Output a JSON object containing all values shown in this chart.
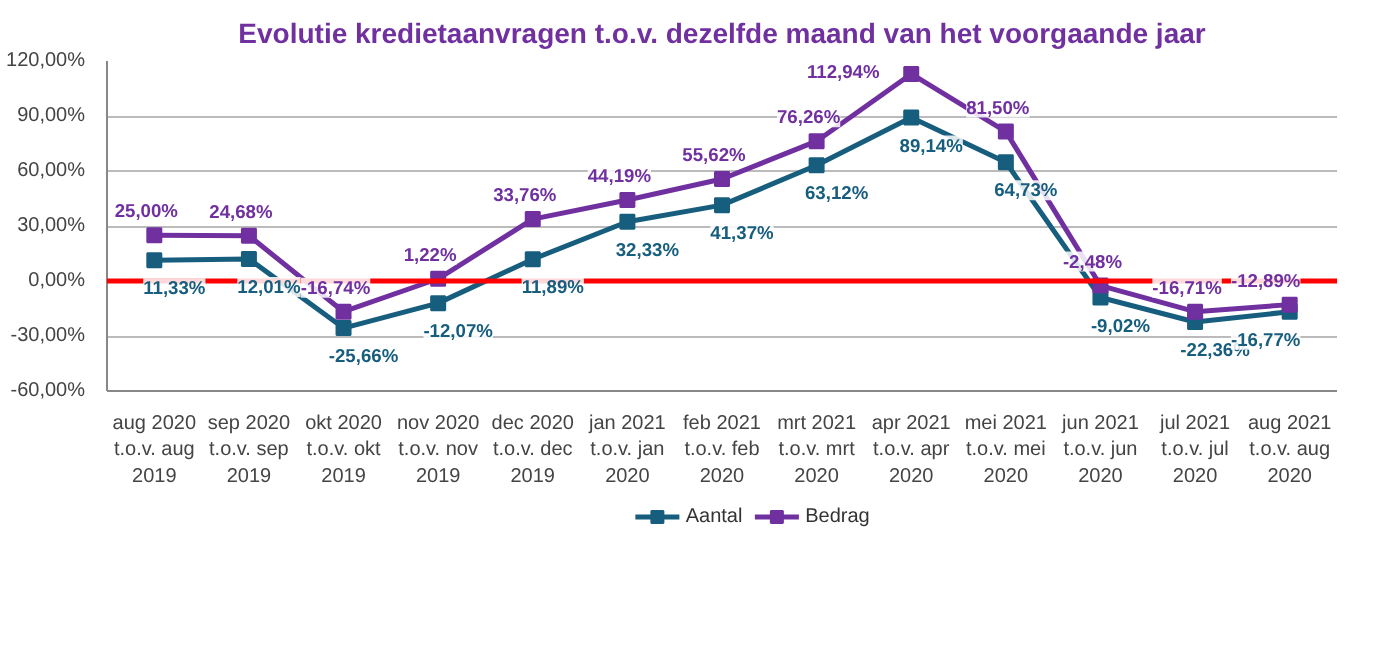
{
  "chart_data": {
    "type": "line",
    "title": "Evolutie kredietaanvragen t.o.v. dezelfde maand van het voorgaande jaar",
    "categories": [
      "aug 2020\nt.o.v. aug\n2019",
      "sep 2020\nt.o.v. sep\n2019",
      "okt 2020\nt.o.v. okt\n2019",
      "nov 2020\nt.o.v. nov\n2019",
      "dec 2020\nt.o.v. dec\n2019",
      "jan 2021\nt.o.v. jan\n2020",
      "feb 2021\nt.o.v. feb\n2020",
      "mrt 2021\nt.o.v. mrt\n2020",
      "apr 2021\nt.o.v. apr\n2020",
      "mei 2021\nt.o.v. mei\n2020",
      "jun 2021\nt.o.v. jun\n2020",
      "jul 2021\nt.o.v. jul\n2020",
      "aug 2021\nt.o.v. aug\n2020"
    ],
    "series": [
      {
        "name": "Aantal",
        "color": "#175e7e",
        "values": [
          11.33,
          12.01,
          -25.66,
          -12.07,
          11.89,
          32.33,
          41.37,
          63.12,
          89.14,
          64.73,
          -9.02,
          -22.36,
          -16.77
        ],
        "value_labels": [
          "11,33%",
          "12,01%",
          "-25,66%",
          "-12,07%",
          "11,89%",
          "32,33%",
          "41,37%",
          "63,12%",
          "89,14%",
          "64,73%",
          "-9,02%",
          "-22,36%",
          "-16,77%"
        ]
      },
      {
        "name": "Bedrag",
        "color": "#7030a0",
        "values": [
          25.0,
          24.68,
          -16.74,
          1.22,
          33.76,
          44.19,
          55.62,
          76.26,
          112.94,
          81.5,
          -2.48,
          -16.71,
          -12.89
        ],
        "value_labels": [
          "25,00%",
          "24,68%",
          "-16,74%",
          "1,22%",
          "33,76%",
          "44,19%",
          "55,62%",
          "76,26%",
          "112,94%",
          "81,50%",
          "-2,48%",
          "-16,71%",
          "-12,89%"
        ]
      }
    ],
    "ylim": [
      -60,
      120
    ],
    "yticks": [
      {
        "value": -60,
        "label": "-60,00%"
      },
      {
        "value": -30,
        "label": "-30,00%"
      },
      {
        "value": 0,
        "label": "0,00%"
      },
      {
        "value": 30,
        "label": "30,00%"
      },
      {
        "value": 60,
        "label": "60,00%"
      },
      {
        "value": 90,
        "label": "90,00%"
      },
      {
        "value": 120,
        "label": "120,00%"
      }
    ],
    "ref_lines": [
      {
        "axis": "y",
        "value": 0,
        "label": null,
        "color": "#ff0000"
      }
    ],
    "grid": "y",
    "legend": "bottom",
    "marker": "square",
    "line_style": "solid"
  }
}
